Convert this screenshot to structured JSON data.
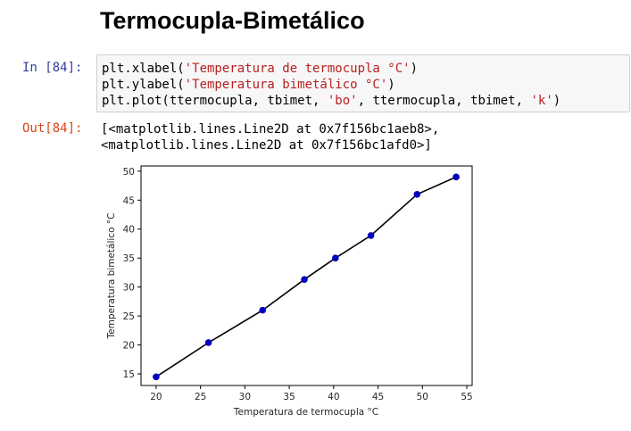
{
  "heading": "Termocupla-Bimetálico",
  "input_cell": {
    "prompt": "In [84]:",
    "lines": [
      {
        "code": "plt.xlabel(",
        "str": "'Temperatura de termocupla °C'",
        "tail": ")"
      },
      {
        "code": "plt.ylabel(",
        "str": "'Temperatura bimetálico °C'",
        "tail": ")"
      },
      {
        "code": "plt.plot(ttermocupla, tbimet, ",
        "str": "'bo'",
        "mid": ", ttermocupla, tbimet, ",
        "str2": "'k'",
        "tail": ")"
      }
    ]
  },
  "output_cell": {
    "prompt": "Out[84]:",
    "lines": [
      "[<matplotlib.lines.Line2D at 0x7f156bc1aeb8>,",
      " <matplotlib.lines.Line2D at 0x7f156bc1afd0>]"
    ]
  },
  "chart_data": {
    "type": "scatter",
    "xlabel": "Temperatura de termocupla °C",
    "ylabel": "Temperatura bimetálico °C",
    "xlim": [
      18.3,
      55.6
    ],
    "ylim": [
      13.0,
      50.9
    ],
    "xticks": [
      20,
      25,
      30,
      35,
      40,
      45,
      50,
      55
    ],
    "yticks": [
      15,
      20,
      25,
      30,
      35,
      40,
      45,
      50
    ],
    "grid": false,
    "series": [
      {
        "style": "bo+k",
        "marker_color": "#0000bf",
        "line_color": "#000000",
        "x": [
          20.0,
          25.9,
          32.0,
          36.7,
          40.2,
          44.2,
          49.4,
          53.8
        ],
        "y": [
          14.5,
          20.4,
          26.0,
          31.3,
          35.0,
          38.9,
          46.0,
          49.0
        ]
      }
    ]
  }
}
